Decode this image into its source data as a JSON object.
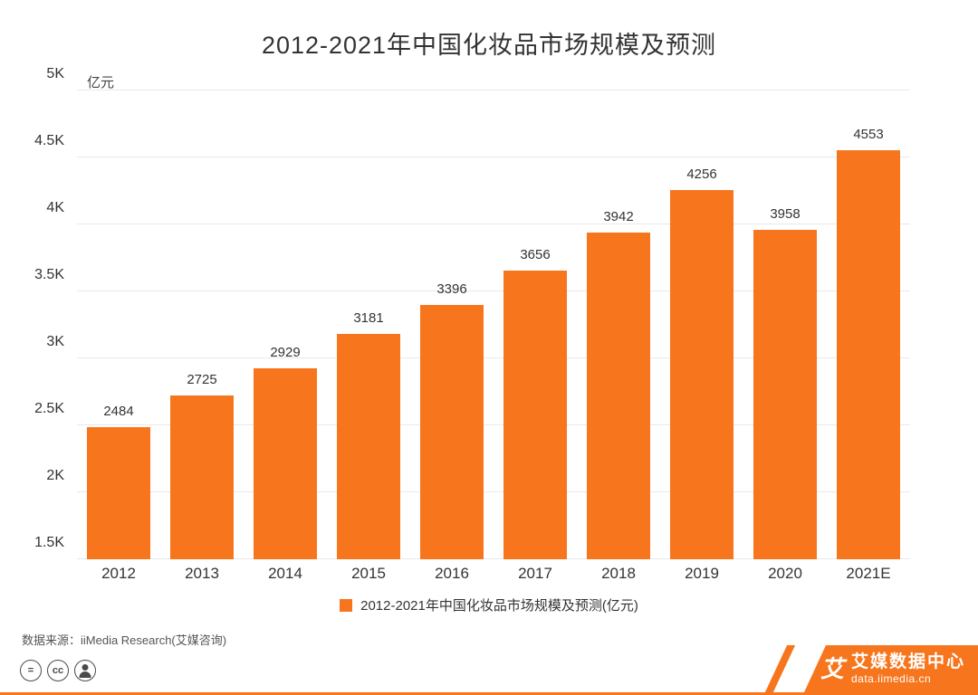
{
  "title": "2012-2021年中国化妆品市场规模及预测",
  "colors": {
    "accent": "#f7761d",
    "grid": "#e9e9e9",
    "text": "#333333"
  },
  "chart_data": {
    "type": "bar",
    "categories": [
      "2012",
      "2013",
      "2014",
      "2015",
      "2016",
      "2017",
      "2018",
      "2019",
      "2020",
      "2021E"
    ],
    "values": [
      2484,
      2725,
      2929,
      3181,
      3396,
      3656,
      3942,
      4256,
      3958,
      4553
    ],
    "title": "2012-2021年中国化妆品市场规模及预测",
    "xlabel": "",
    "ylabel": "亿元",
    "ylim": [
      1500,
      5000
    ],
    "yticks": [
      {
        "value": 1500,
        "label": "1.5K"
      },
      {
        "value": 2000,
        "label": "2K"
      },
      {
        "value": 2500,
        "label": "2.5K"
      },
      {
        "value": 3000,
        "label": "3K"
      },
      {
        "value": 3500,
        "label": "3.5K"
      },
      {
        "value": 4000,
        "label": "4K"
      },
      {
        "value": 4500,
        "label": "4.5K"
      },
      {
        "value": 5000,
        "label": "5K"
      }
    ],
    "grid": true,
    "legend_label": "2012-2021年中国化妆品市场规模及预测(亿元)",
    "legend_position": "bottom",
    "bar_color": "#f7761d"
  },
  "source": "数据来源：iiMedia Research(艾媒咨询)",
  "license": {
    "icons": [
      {
        "name": "equals-icon",
        "glyph": "="
      },
      {
        "name": "cc-icon",
        "glyph": "cc"
      },
      {
        "name": "person-icon",
        "glyph": ""
      }
    ]
  },
  "footer": {
    "logo_glyph": "艾",
    "brand_name": "艾媒数据中心",
    "brand_url": "data.iimedia.cn"
  }
}
